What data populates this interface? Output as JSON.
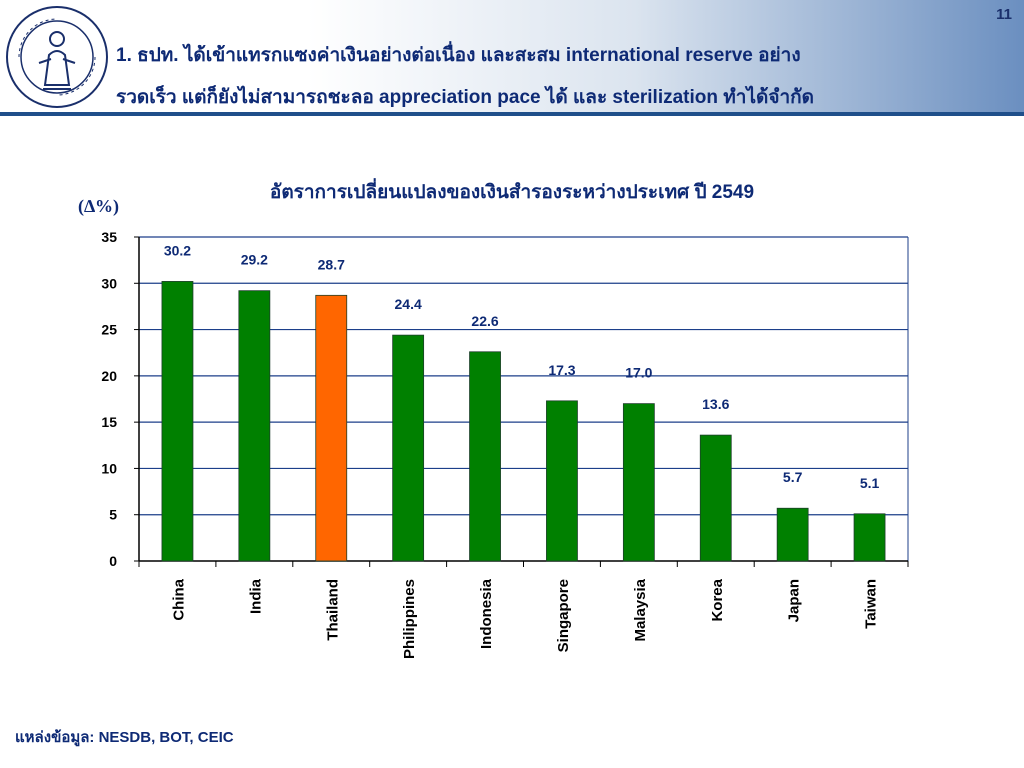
{
  "header": {
    "page_number": "11",
    "title_line1": "1. ธปท. ได้เข้าแทรกแซงค่าเงินอย่างต่อเนื่อง และสะสม international reserve อย่าง",
    "title_line2": "รวดเร็ว แต่ก็ยังไม่สามารถชะลอ appreciation pace ได้ และ sterilization ทำได้จำกัด",
    "logo_icon": "bank-of-thailand-seal-icon"
  },
  "source": "แหล่งข้อมูล: NESDB, BOT, CEIC",
  "colors": {
    "bar_default": "#008000",
    "bar_highlight": "#ff6600",
    "text_navy": "#0e2a75",
    "header_rule": "#1f4f8a"
  },
  "chart_data": {
    "type": "bar",
    "title": "อัตราการเปลี่ยนแปลงของเงินสำรองระหว่างประเทศ ปี 2549",
    "ylabel": "(∆%)",
    "xlabel": "",
    "categories": [
      "China",
      "India",
      "Thailand",
      "Philippines",
      "Indonesia",
      "Singapore",
      "Malaysia",
      "Korea",
      "Japan",
      "Taiwan"
    ],
    "values": [
      30.2,
      29.2,
      28.7,
      24.4,
      22.6,
      17.3,
      17.0,
      13.6,
      5.7,
      5.1
    ],
    "value_labels": [
      "30.2",
      "29.2",
      "28.7",
      "24.4",
      "22.6",
      "17.3",
      "17.0",
      "13.6",
      "5.7",
      "5.1"
    ],
    "highlight_category": "Thailand",
    "ylim": [
      0,
      35
    ],
    "yticks": [
      0,
      5,
      10,
      15,
      20,
      25,
      30,
      35
    ],
    "grid": true,
    "legend": "none"
  }
}
